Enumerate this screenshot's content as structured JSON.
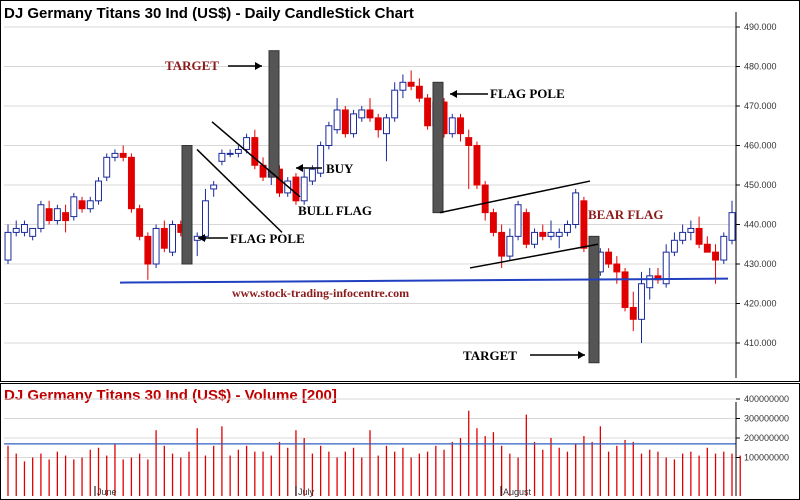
{
  "chart_data": [
    {
      "type": "candlestick",
      "title": "DJ Germany Titans 30 Ind (US$) - Daily CandleStick Chart",
      "y_ticks": [
        410,
        420,
        430,
        440,
        450,
        460,
        470,
        480,
        490
      ],
      "y_tick_labels": [
        "410.000",
        "420.000",
        "430.000",
        "440.000",
        "450.000",
        "460.000",
        "470.000",
        "480.000",
        "490.000"
      ],
      "ylim": [
        402,
        493
      ],
      "x_month_labels": [
        {
          "index": 21,
          "label": "June"
        },
        {
          "index": 67,
          "label": "July"
        },
        {
          "index": 114,
          "label": "August"
        }
      ],
      "candles": [
        {
          "o": 431,
          "h": 440,
          "l": 430,
          "c": 438
        },
        {
          "o": 438,
          "h": 441,
          "l": 437,
          "c": 439
        },
        {
          "o": 438,
          "h": 441,
          "l": 437,
          "c": 440
        },
        {
          "o": 437,
          "h": 439,
          "l": 436,
          "c": 439
        },
        {
          "o": 439,
          "h": 446,
          "l": 438,
          "c": 445
        },
        {
          "o": 444,
          "h": 446,
          "l": 440,
          "c": 441
        },
        {
          "o": 441,
          "h": 445,
          "l": 440,
          "c": 444
        },
        {
          "o": 443,
          "h": 445,
          "l": 438,
          "c": 441
        },
        {
          "o": 442,
          "h": 448,
          "l": 441,
          "c": 447
        },
        {
          "o": 446,
          "h": 447,
          "l": 443,
          "c": 444
        },
        {
          "o": 444,
          "h": 447,
          "l": 443,
          "c": 446
        },
        {
          "o": 446,
          "h": 452,
          "l": 445,
          "c": 451
        },
        {
          "o": 452,
          "h": 458,
          "l": 451,
          "c": 457
        },
        {
          "o": 457,
          "h": 459,
          "l": 456,
          "c": 458
        },
        {
          "o": 458,
          "h": 460,
          "l": 456,
          "c": 457
        },
        {
          "o": 457,
          "h": 458,
          "l": 443,
          "c": 444
        },
        {
          "o": 444,
          "h": 445,
          "l": 436,
          "c": 437
        },
        {
          "o": 437,
          "h": 438,
          "l": 426,
          "c": 430
        },
        {
          "o": 430,
          "h": 440,
          "l": 429,
          "c": 439
        },
        {
          "o": 439,
          "h": 441,
          "l": 433,
          "c": 434
        },
        {
          "o": 433,
          "h": 441,
          "l": 432,
          "c": 440
        },
        {
          "o": 440,
          "h": 441,
          "l": 437,
          "c": 438
        },
        {
          "o": 438,
          "h": 439,
          "l": 430,
          "c": 437
        },
        {
          "o": 436,
          "h": 438,
          "l": 432,
          "c": 437
        },
        {
          "o": 437,
          "h": 449,
          "l": 436,
          "c": 446
        },
        {
          "o": 449,
          "h": 451,
          "l": 447,
          "c": 450
        },
        {
          "o": 456,
          "h": 459,
          "l": 455,
          "c": 458
        },
        {
          "o": 458,
          "h": 459,
          "l": 457,
          "c": 458
        },
        {
          "o": 458,
          "h": 460,
          "l": 457,
          "c": 459
        },
        {
          "o": 459,
          "h": 463,
          "l": 458,
          "c": 462
        },
        {
          "o": 462,
          "h": 464,
          "l": 454,
          "c": 455
        },
        {
          "o": 455,
          "h": 457,
          "l": 451,
          "c": 452
        },
        {
          "o": 452,
          "h": 455,
          "l": 450,
          "c": 454
        },
        {
          "o": 454,
          "h": 455,
          "l": 447,
          "c": 448
        },
        {
          "o": 448,
          "h": 452,
          "l": 447,
          "c": 451
        },
        {
          "o": 452,
          "h": 453,
          "l": 445,
          "c": 446
        },
        {
          "o": 446,
          "h": 454,
          "l": 445,
          "c": 452
        },
        {
          "o": 451,
          "h": 455,
          "l": 450,
          "c": 454
        },
        {
          "o": 453,
          "h": 461,
          "l": 452,
          "c": 460
        },
        {
          "o": 460,
          "h": 466,
          "l": 459,
          "c": 465
        },
        {
          "o": 464,
          "h": 472,
          "l": 463,
          "c": 469
        },
        {
          "o": 469,
          "h": 470,
          "l": 462,
          "c": 463
        },
        {
          "o": 463,
          "h": 469,
          "l": 462,
          "c": 468
        },
        {
          "o": 467,
          "h": 470,
          "l": 466,
          "c": 469
        },
        {
          "o": 469,
          "h": 472,
          "l": 466,
          "c": 467
        },
        {
          "o": 467,
          "h": 468,
          "l": 462,
          "c": 464
        },
        {
          "o": 463,
          "h": 468,
          "l": 456,
          "c": 467
        },
        {
          "o": 467,
          "h": 476,
          "l": 466,
          "c": 474
        },
        {
          "o": 474,
          "h": 478,
          "l": 472,
          "c": 476
        },
        {
          "o": 476,
          "h": 479,
          "l": 474,
          "c": 475
        },
        {
          "o": 475,
          "h": 477,
          "l": 471,
          "c": 472
        },
        {
          "o": 472,
          "h": 473,
          "l": 464,
          "c": 465
        },
        {
          "o": 465,
          "h": 473,
          "l": 464,
          "c": 471
        },
        {
          "o": 471,
          "h": 472,
          "l": 462,
          "c": 463
        },
        {
          "o": 463,
          "h": 468,
          "l": 462,
          "c": 467
        },
        {
          "o": 467,
          "h": 468,
          "l": 461,
          "c": 463
        },
        {
          "o": 462,
          "h": 464,
          "l": 449,
          "c": 460
        },
        {
          "o": 460,
          "h": 461,
          "l": 449,
          "c": 450
        },
        {
          "o": 450,
          "h": 451,
          "l": 441,
          "c": 443
        },
        {
          "o": 443,
          "h": 444,
          "l": 437,
          "c": 438
        },
        {
          "o": 438,
          "h": 440,
          "l": 429,
          "c": 432
        },
        {
          "o": 432,
          "h": 439,
          "l": 431,
          "c": 437
        },
        {
          "o": 437,
          "h": 446,
          "l": 436,
          "c": 445
        },
        {
          "o": 443,
          "h": 444,
          "l": 434,
          "c": 435
        },
        {
          "o": 435,
          "h": 439,
          "l": 434,
          "c": 438
        },
        {
          "o": 438,
          "h": 440,
          "l": 436,
          "c": 437
        },
        {
          "o": 437,
          "h": 441,
          "l": 436,
          "c": 438
        },
        {
          "o": 437,
          "h": 439,
          "l": 434,
          "c": 438
        },
        {
          "o": 438,
          "h": 441,
          "l": 437,
          "c": 440
        },
        {
          "o": 440,
          "h": 449,
          "l": 439,
          "c": 448
        },
        {
          "o": 446,
          "h": 447,
          "l": 433,
          "c": 434
        },
        {
          "o": 434,
          "h": 435,
          "l": 427,
          "c": 428
        },
        {
          "o": 428,
          "h": 434,
          "l": 427,
          "c": 433
        },
        {
          "o": 433,
          "h": 434,
          "l": 429,
          "c": 430
        },
        {
          "o": 430,
          "h": 432,
          "l": 425,
          "c": 428
        },
        {
          "o": 428,
          "h": 429,
          "l": 418,
          "c": 419
        },
        {
          "o": 419,
          "h": 423,
          "l": 413,
          "c": 416
        },
        {
          "o": 416,
          "h": 428,
          "l": 410,
          "c": 425
        },
        {
          "o": 424,
          "h": 429,
          "l": 421,
          "c": 427
        },
        {
          "o": 427,
          "h": 429,
          "l": 425,
          "c": 426
        },
        {
          "o": 425,
          "h": 435,
          "l": 424,
          "c": 433
        },
        {
          "o": 433,
          "h": 438,
          "l": 432,
          "c": 436
        },
        {
          "o": 436,
          "h": 440,
          "l": 435,
          "c": 438
        },
        {
          "o": 438,
          "h": 441,
          "l": 436,
          "c": 439
        },
        {
          "o": 439,
          "h": 442,
          "l": 434,
          "c": 435
        },
        {
          "o": 435,
          "h": 437,
          "l": 433,
          "c": 433
        },
        {
          "o": 433,
          "h": 435,
          "l": 425,
          "c": 431
        },
        {
          "o": 431,
          "h": 438,
          "l": 430,
          "c": 437
        },
        {
          "o": 436,
          "h": 446,
          "l": 435,
          "c": 443
        }
      ],
      "support_line_value": 425.5,
      "annotations": [
        {
          "text": "TARGET",
          "style": "red"
        },
        {
          "text": "BUY",
          "style": "black"
        },
        {
          "text": "BULL FLAG",
          "style": "black"
        },
        {
          "text": "FLAG POLE",
          "style": "black"
        },
        {
          "text": "FLAG POLE",
          "style": "black"
        },
        {
          "text": "BEAR FLAG",
          "style": "red"
        },
        {
          "text": "TARGET",
          "style": "black"
        }
      ],
      "watermark": "www.stock-trading-infocentre.com",
      "colors": {
        "up": "#ffffff",
        "up_border": "#1a2a9a",
        "down": "#e00000",
        "support": "#2040c0",
        "pole": "#555555"
      }
    },
    {
      "type": "bar",
      "title": "DJ Germany Titans 30 Ind (US$) - Volume [200]",
      "y_ticks": [
        100000000,
        200000000,
        300000000,
        400000000
      ],
      "y_tick_labels": [
        "100000000",
        "200000000",
        "300000000",
        "400000000"
      ],
      "ylim": [
        0,
        500000000
      ],
      "average_line_value": 170000000,
      "bar_color": "#e00000",
      "average_color": "#3060c0",
      "values": [
        160000000,
        120000000,
        80000000,
        100000000,
        120000000,
        90000000,
        130000000,
        110000000,
        90000000,
        100000000,
        140000000,
        150000000,
        110000000,
        170000000,
        90000000,
        100000000,
        120000000,
        90000000,
        240000000,
        160000000,
        120000000,
        100000000,
        130000000,
        250000000,
        110000000,
        160000000,
        260000000,
        110000000,
        140000000,
        160000000,
        130000000,
        130000000,
        110000000,
        180000000,
        150000000,
        240000000,
        200000000,
        120000000,
        160000000,
        130000000,
        100000000,
        130000000,
        150000000,
        100000000,
        240000000,
        110000000,
        160000000,
        130000000,
        150000000,
        100000000,
        120000000,
        130000000,
        160000000,
        140000000,
        180000000,
        200000000,
        340000000,
        250000000,
        210000000,
        230000000,
        160000000,
        120000000,
        100000000,
        320000000,
        180000000,
        140000000,
        200000000,
        150000000,
        130000000,
        170000000,
        210000000,
        180000000,
        260000000,
        130000000,
        160000000,
        190000000,
        180000000,
        120000000,
        140000000,
        130000000,
        100000000,
        90000000,
        120000000,
        130000000,
        110000000,
        150000000,
        120000000,
        130000000,
        120000000,
        110000000
      ],
      "x_month_labels": [
        {
          "index": 21,
          "label": "June"
        },
        {
          "index": 67,
          "label": "July"
        },
        {
          "index": 114,
          "label": "August"
        }
      ]
    }
  ]
}
